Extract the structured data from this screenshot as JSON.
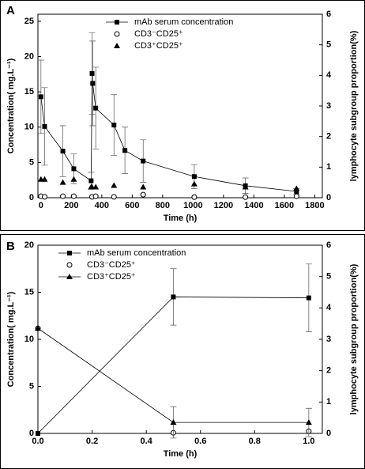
{
  "chart_data": [
    {
      "type": "scatter",
      "panel_label": "A",
      "xlabel": "Time (h)",
      "ylabel": "Concentration( mg.L⁻¹)",
      "y2label": "lymphocyte subgroup proportion(%)",
      "xlim": [
        -20,
        1850
      ],
      "xticks": [
        0,
        200,
        400,
        600,
        800,
        1000,
        1200,
        1400,
        1600,
        1800
      ],
      "ylim": [
        0,
        26
      ],
      "yticks": [
        0,
        5,
        10,
        15,
        20,
        25
      ],
      "y2lim": [
        0,
        6
      ],
      "y2ticks": [
        0,
        1,
        2,
        3,
        4,
        5,
        6
      ],
      "legend": "top-center",
      "series": [
        {
          "name": "mAb serum concentration",
          "color": "#000000",
          "marker": "square",
          "line": true,
          "x": [
            0,
            24,
            144,
            216,
            330,
            336,
            340,
            360,
            480,
            552,
            672,
            1008,
            1344,
            1680
          ],
          "values": [
            14.3,
            10.1,
            6.6,
            4.1,
            2.4,
            17.6,
            16.2,
            12.7,
            10.3,
            6.7,
            5.2,
            3.0,
            1.7,
            0.9
          ],
          "errors": [
            5.2,
            5.5,
            3.6,
            2.1,
            1.2,
            5.8,
            6.0,
            5.8,
            4.3,
            3.3,
            3.0,
            1.7,
            1.1,
            0.4
          ]
        },
        {
          "name": "CD3⁻CD25⁺",
          "color": "#000000",
          "marker": "circle-open",
          "line": false,
          "axis": "y2",
          "x": [
            0,
            24,
            144,
            216,
            336,
            360,
            480,
            672,
            1008,
            1344,
            1680
          ],
          "values": [
            0.05,
            0.03,
            0.05,
            0.05,
            0.03,
            0.05,
            0.03,
            0.1,
            0.02,
            0.02,
            0.05
          ]
        },
        {
          "name": "CD3⁺CD25⁺",
          "color": "#000000",
          "marker": "triangle",
          "line": false,
          "axis": "y2",
          "x": [
            0,
            24,
            144,
            216,
            330,
            336,
            360,
            480,
            672,
            1008,
            1344,
            1680
          ],
          "values": [
            0.6,
            0.6,
            0.5,
            0.6,
            0.35,
            0.35,
            0.35,
            0.4,
            0.35,
            0.45,
            0.35,
            0.3
          ]
        }
      ]
    },
    {
      "type": "scatter",
      "panel_label": "B",
      "xlabel": "Time (h)",
      "ylabel": "Concentration( mg.L⁻¹)",
      "y2label": "lymphocyte subgroup proportion(%)",
      "xlim": [
        0,
        1.05
      ],
      "xticks": [
        {
          "value": 0,
          "label": "0.0"
        },
        0.2,
        0.4,
        0.6,
        0.8,
        {
          "value": 1,
          "label": "1.0"
        }
      ],
      "ylim": [
        0,
        20
      ],
      "yticks": [
        0,
        5,
        10,
        15,
        20
      ],
      "y2lim": [
        0,
        6
      ],
      "y2ticks": [
        0,
        1,
        2,
        3,
        4,
        5,
        6
      ],
      "legend": "top-center",
      "series": [
        {
          "name": "mAb serum concentration",
          "color": "#000000",
          "marker": "square",
          "line": true,
          "x": [
            0,
            0.5,
            1
          ],
          "values": [
            0,
            14.5,
            14.4
          ],
          "errors": [
            0,
            3.0,
            3.6
          ]
        },
        {
          "name": "CD3⁻CD25⁺",
          "color": "#000000",
          "marker": "circle-open",
          "line": false,
          "axis": "y2",
          "x": [
            0,
            0.5,
            1
          ],
          "values": [
            3.35,
            0.02,
            0.07
          ]
        },
        {
          "name": "CD3⁺CD25⁺",
          "color": "#000000",
          "marker": "triangle",
          "line": true,
          "axis": "y2",
          "x": [
            0,
            0.5,
            1
          ],
          "values": [
            3.35,
            0.35,
            0.35
          ],
          "errors": [
            0,
            0.5,
            0.45
          ]
        }
      ]
    }
  ]
}
